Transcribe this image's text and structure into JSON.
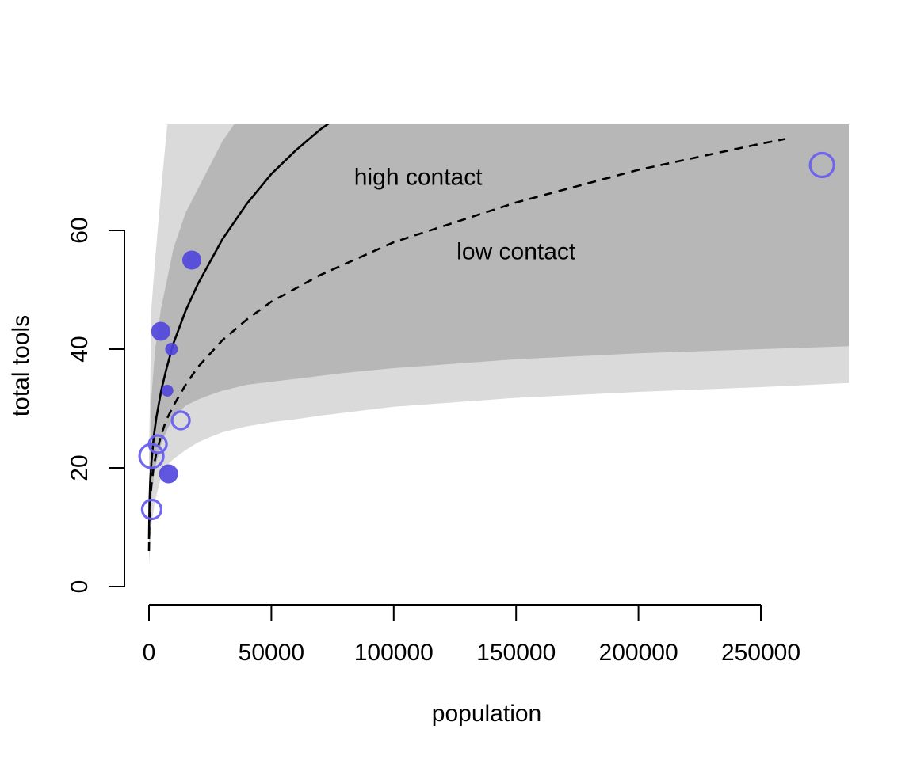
{
  "chart_data": {
    "type": "scatter",
    "title": "",
    "xlabel": "population",
    "ylabel": "total tools",
    "xlim": [
      -4000,
      287000
    ],
    "ylim": [
      0,
      80
    ],
    "x_ticks": [
      0,
      50000,
      100000,
      150000,
      200000,
      250000
    ],
    "y_ticks": [
      0,
      20,
      40,
      60
    ],
    "x_tick_labels": [
      "0",
      "50000",
      "100000",
      "150000",
      "200000",
      "250000"
    ],
    "y_tick_labels": [
      "0",
      "20",
      "40",
      "60"
    ],
    "grid": false,
    "annotations": [
      {
        "text": "high contact",
        "x": 110000,
        "y": 69
      },
      {
        "text": "low contact",
        "x": 150000,
        "y": 56.5
      }
    ],
    "colors": {
      "outer_band": "#dadada",
      "inner_band": "#b7b7b7",
      "high_contact_points": "#4f44dc",
      "low_contact_points": "#6a5fee"
    },
    "series": [
      {
        "name": "high contact",
        "kind": "points",
        "style": "filled",
        "points": [
          {
            "x": 8000,
            "y": 19,
            "size": 1.2
          },
          {
            "x": 7500,
            "y": 33,
            "size": 0.75
          },
          {
            "x": 9200,
            "y": 40,
            "size": 0.8
          },
          {
            "x": 4800,
            "y": 43,
            "size": 1.2
          },
          {
            "x": 17500,
            "y": 55,
            "size": 1.2
          }
        ]
      },
      {
        "name": "low contact",
        "kind": "points",
        "style": "open",
        "points": [
          {
            "x": 1100,
            "y": 13,
            "size": 1.2
          },
          {
            "x": 1000,
            "y": 22,
            "size": 1.5
          },
          {
            "x": 3600,
            "y": 24,
            "size": 1.1
          },
          {
            "x": 13000,
            "y": 28,
            "size": 1.1
          },
          {
            "x": 275000,
            "y": 71,
            "size": 1.5
          }
        ]
      },
      {
        "name": "high contact",
        "kind": "line",
        "style": "solid",
        "x": [
          0,
          200,
          500,
          1000,
          2000,
          3000,
          5000,
          7000,
          10000,
          15000,
          20000,
          30000,
          40000,
          50000,
          60000,
          70000,
          82000
        ],
        "y": [
          8,
          14,
          17.6,
          21,
          25.5,
          28.5,
          33,
          36.5,
          41,
          46.5,
          51,
          58.5,
          64.5,
          69.5,
          73.5,
          77,
          80.5
        ]
      },
      {
        "name": "low contact",
        "kind": "line",
        "style": "dashed",
        "x": [
          0,
          200,
          500,
          1000,
          2000,
          3000,
          5000,
          7000,
          10000,
          15000,
          20000,
          30000,
          40000,
          50000,
          70000,
          100000,
          150000,
          200000,
          250000,
          260000
        ],
        "y": [
          6,
          11.5,
          14.5,
          17.2,
          20.5,
          22.5,
          25.5,
          28,
          30.5,
          34,
          37,
          41.5,
          45,
          48,
          52.5,
          58,
          64.7,
          70.2,
          74.6,
          75.4
        ]
      },
      {
        "name": "",
        "kind": "band",
        "style": "outer",
        "x": [
          0,
          1000,
          2500,
          5000,
          7500,
          10000,
          15000,
          20000,
          25000,
          30000,
          40000,
          50000,
          60000,
          70000,
          80000,
          100000,
          150000,
          200000,
          250000,
          286000
        ],
        "lower": [
          3.5,
          10.5,
          14.5,
          18.5,
          20.5,
          21.5,
          23,
          24.3,
          25.2,
          26,
          27,
          27.7,
          28.2,
          28.8,
          29.3,
          30.3,
          31.8,
          32.8,
          33.6,
          34.3
        ],
        "upper": [
          22,
          47,
          55,
          67,
          78,
          95,
          120,
          140,
          160,
          180,
          200,
          220,
          240,
          260,
          280,
          300,
          350,
          400,
          450,
          480
        ]
      },
      {
        "name": "",
        "kind": "band",
        "style": "inner",
        "x": [
          0,
          1000,
          2500,
          5000,
          7500,
          10000,
          15000,
          20000,
          25000,
          30000,
          40000,
          50000,
          60000,
          70000,
          80000,
          100000,
          150000,
          200000,
          250000,
          286000
        ],
        "lower": [
          7,
          15,
          20,
          24,
          26.5,
          28.5,
          30.5,
          31.5,
          32.3,
          33,
          34,
          34.5,
          35,
          35.5,
          36,
          36.8,
          38.3,
          39.3,
          40,
          40.5
        ],
        "upper": [
          13,
          32,
          40,
          47,
          52,
          57,
          63,
          67,
          71,
          75,
          81,
          88,
          95,
          102,
          109,
          120,
          140,
          160,
          180,
          200
        ]
      }
    ]
  }
}
